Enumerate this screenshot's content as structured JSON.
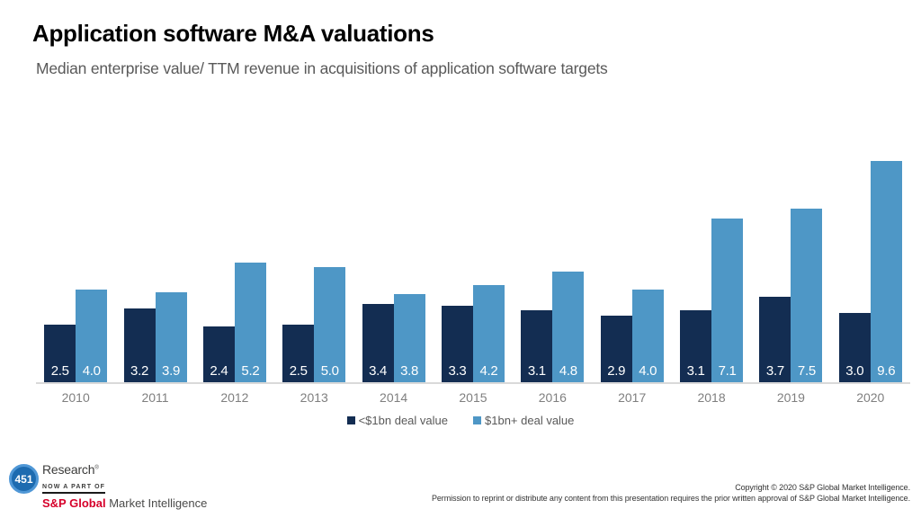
{
  "slide": {
    "title": "Application software M&A valuations",
    "subtitle": "Median enterprise value/ TTM revenue in acquisitions of application software targets"
  },
  "chart_data": {
    "type": "bar",
    "title": "Application software M&A valuations",
    "subtitle": "Median enterprise value/ TTM revenue in acquisitions of application software targets",
    "categories": [
      "2010",
      "2011",
      "2012",
      "2013",
      "2014",
      "2015",
      "2016",
      "2017",
      "2018",
      "2019",
      "2020"
    ],
    "series": [
      {
        "name": "<$1bn deal value",
        "color": "#132d52",
        "values": [
          2.5,
          3.2,
          2.4,
          2.5,
          3.4,
          3.3,
          3.1,
          2.9,
          3.1,
          3.7,
          3.0
        ]
      },
      {
        "name": "$1bn+ deal value",
        "color": "#4e97c6",
        "values": [
          4.0,
          3.9,
          5.2,
          5.0,
          3.8,
          4.2,
          4.8,
          4.0,
          7.1,
          7.5,
          9.6
        ]
      }
    ],
    "xlabel": "",
    "ylabel": "",
    "ylim": [
      0,
      10.4
    ],
    "grid": false,
    "axis_line_color": "#d9d9d9",
    "legend_position": "bottom",
    "data_labels": "inside-bottom, white, one decimal"
  },
  "footer": {
    "logo": {
      "badge": "451",
      "brand": "Research",
      "trademark": "®",
      "tagline": "NOW A PART OF",
      "parent_brand": "S&P Global",
      "parent_suffix": "Market Intelligence"
    },
    "copyright_line1": "Copyright © 2020 S&P Global Market Intelligence.",
    "copyright_line2": "Permission to reprint or distribute any content from this presentation requires the prior written approval of S&P Global Market Intelligence."
  },
  "colors": {
    "series_dark": "#132d52",
    "series_light": "#4e97c6",
    "subtitle_gray": "#595959",
    "axis_label_gray": "#7f7f7f",
    "sp_red": "#d6002a",
    "badge_blue": "#1d6bb0"
  }
}
